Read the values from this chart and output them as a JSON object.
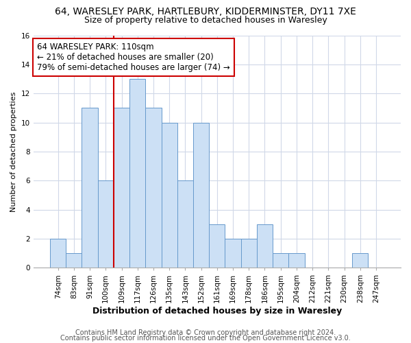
{
  "title": "64, WARESLEY PARK, HARTLEBURY, KIDDERMINSTER, DY11 7XE",
  "subtitle": "Size of property relative to detached houses in Waresley",
  "xlabel": "Distribution of detached houses by size in Waresley",
  "ylabel": "Number of detached properties",
  "bar_labels": [
    "74sqm",
    "83sqm",
    "91sqm",
    "100sqm",
    "109sqm",
    "117sqm",
    "126sqm",
    "135sqm",
    "143sqm",
    "152sqm",
    "161sqm",
    "169sqm",
    "178sqm",
    "186sqm",
    "195sqm",
    "204sqm",
    "212sqm",
    "221sqm",
    "230sqm",
    "238sqm",
    "247sqm"
  ],
  "bar_values": [
    2,
    1,
    11,
    6,
    11,
    13,
    11,
    10,
    6,
    10,
    3,
    2,
    2,
    3,
    1,
    1,
    0,
    0,
    0,
    1,
    0
  ],
  "bar_color": "#cce0f5",
  "bar_edge_color": "#6699cc",
  "ylim": [
    0,
    16
  ],
  "yticks": [
    0,
    2,
    4,
    6,
    8,
    10,
    12,
    14,
    16
  ],
  "vline_index": 3.5,
  "vline_color": "#cc0000",
  "annotation_text": "64 WARESLEY PARK: 110sqm\n← 21% of detached houses are smaller (20)\n79% of semi-detached houses are larger (74) →",
  "annotation_box_facecolor": "#ffffff",
  "annotation_box_edgecolor": "#cc0000",
  "footer_line1": "Contains HM Land Registry data © Crown copyright and database right 2024.",
  "footer_line2": "Contains public sector information licensed under the Open Government Licence v3.0.",
  "title_fontsize": 10,
  "subtitle_fontsize": 9,
  "tick_fontsize": 7.5,
  "ylabel_fontsize": 8,
  "xlabel_fontsize": 9,
  "annotation_fontsize": 8.5,
  "footer_fontsize": 7,
  "grid_color": "#d0d8e8",
  "fig_background": "#ffffff",
  "plot_background": "#ffffff"
}
